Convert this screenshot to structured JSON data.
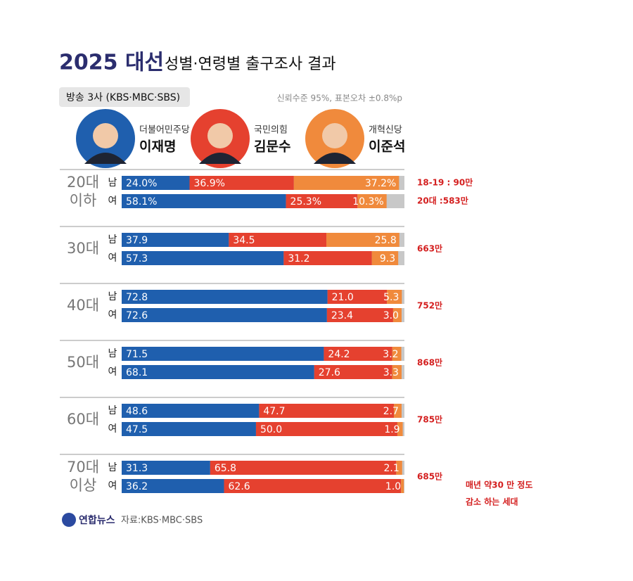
{
  "chart_data": {
    "type": "stacked-bar-horizontal",
    "title_bold": "2025 대선",
    "title": "성별·연령별 출구조사 결과",
    "subtitle": "방송 3사 (KBS·MBC·SBS)",
    "note": "신뢰수준 95%, 표본오차 ±0.8%p",
    "source": "자료:KBS·MBC·SBS",
    "logo": "연합뉴스",
    "xlim": [
      0,
      100
    ],
    "categories": [
      "남",
      "여",
      "남",
      "여",
      "남",
      "여",
      "남",
      "여",
      "남",
      "여",
      "남",
      "여"
    ],
    "age_groups": [
      {
        "lines": [
          "20대",
          "이하"
        ],
        "note": [
          "18-19 : 90만",
          "20대 :583만"
        ]
      },
      {
        "lines": [
          "30대"
        ],
        "note": [
          "663만"
        ]
      },
      {
        "lines": [
          "40대"
        ],
        "note": [
          "752만"
        ]
      },
      {
        "lines": [
          "50대"
        ],
        "note": [
          "868만"
        ]
      },
      {
        "lines": [
          "60대"
        ],
        "note": [
          "785만"
        ]
      },
      {
        "lines": [
          "70대",
          "이상"
        ],
        "note": [
          "685만"
        ]
      }
    ],
    "side_note": [
      "매년 약30 만 정도",
      "감소 하는 세대"
    ],
    "series": [
      {
        "name": "이재명",
        "party": "더불어민주당",
        "color": "#1f5fae",
        "values": [
          24.0,
          58.1,
          37.9,
          57.3,
          72.8,
          72.6,
          71.5,
          68.1,
          48.6,
          47.5,
          31.3,
          36.2
        ],
        "value_labels": [
          "24.0%",
          "58.1%",
          "37.9",
          "57.3",
          "72.8",
          "72.6",
          "71.5",
          "68.1",
          "48.6",
          "47.5",
          "31.3",
          "36.2"
        ]
      },
      {
        "name": "김문수",
        "party": "국민의힘",
        "color": "#e5412f",
        "values": [
          36.9,
          25.3,
          34.5,
          31.2,
          21.0,
          23.4,
          24.2,
          27.6,
          47.7,
          50.0,
          65.8,
          62.6
        ],
        "value_labels": [
          "36.9%",
          "25.3%",
          "34.5",
          "31.2",
          "21.0",
          "23.4",
          "24.2",
          "27.6",
          "47.7",
          "50.0",
          "65.8",
          "62.6"
        ]
      },
      {
        "name": "이준석",
        "party": "개혁신당",
        "color": "#f08a3c",
        "values": [
          37.2,
          10.3,
          25.8,
          9.3,
          5.3,
          3.0,
          3.2,
          3.3,
          2.7,
          1.9,
          2.1,
          1.0
        ],
        "value_labels": [
          "37.2%",
          "10.3%",
          "25.8",
          "9.3",
          "5.3",
          "3.0",
          "3.2",
          "3.3",
          "2.7",
          "1.9",
          "2.1",
          "1.0"
        ]
      }
    ]
  }
}
